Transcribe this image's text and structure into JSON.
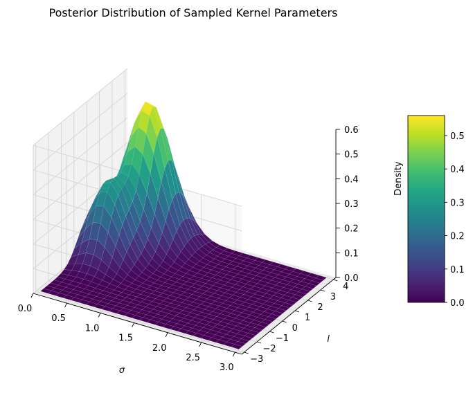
{
  "chart_data": {
    "type": "surface3d",
    "title": "Posterior Distribution of Sampled Kernel Parameters",
    "xlabel": "σ",
    "ylabel": "l",
    "zlabel": "Density",
    "xlim": [
      0,
      3.1
    ],
    "ylim": [
      -3.2,
      4.2
    ],
    "zlim": [
      0,
      0.6
    ],
    "x_ticks": [
      "0.0",
      "0.5",
      "1.0",
      "1.5",
      "2.0",
      "2.5",
      "3.0"
    ],
    "x_tick_values": [
      0,
      0.5,
      1,
      1.5,
      2,
      2.5,
      3
    ],
    "y_ticks": [
      "−3",
      "−2",
      "−1",
      "0",
      "1",
      "2",
      "3",
      "4"
    ],
    "y_tick_values": [
      -3,
      -2,
      -1,
      0,
      1,
      2,
      3,
      4
    ],
    "z_ticks": [
      "0.0",
      "0.1",
      "0.2",
      "0.3",
      "0.4",
      "0.5",
      "0.6"
    ],
    "z_tick_values": [
      0,
      0.1,
      0.2,
      0.3,
      0.4,
      0.5,
      0.6
    ],
    "colormap": "viridis",
    "colorbar": {
      "ticks": [
        "0.0",
        "0.1",
        "0.2",
        "0.3",
        "0.4",
        "0.5"
      ],
      "tick_values": [
        0,
        0.1,
        0.2,
        0.3,
        0.4,
        0.5
      ],
      "range": [
        0,
        0.56
      ]
    },
    "peaks": [
      {
        "sigma": 0.55,
        "l": 3.0,
        "density": 0.56,
        "sigma_spread": 0.3,
        "l_spread": 0.9
      },
      {
        "sigma": 0.35,
        "l": 0.8,
        "density": 0.29,
        "sigma_spread": 0.25,
        "l_spread": 0.8
      }
    ],
    "grid": true
  }
}
